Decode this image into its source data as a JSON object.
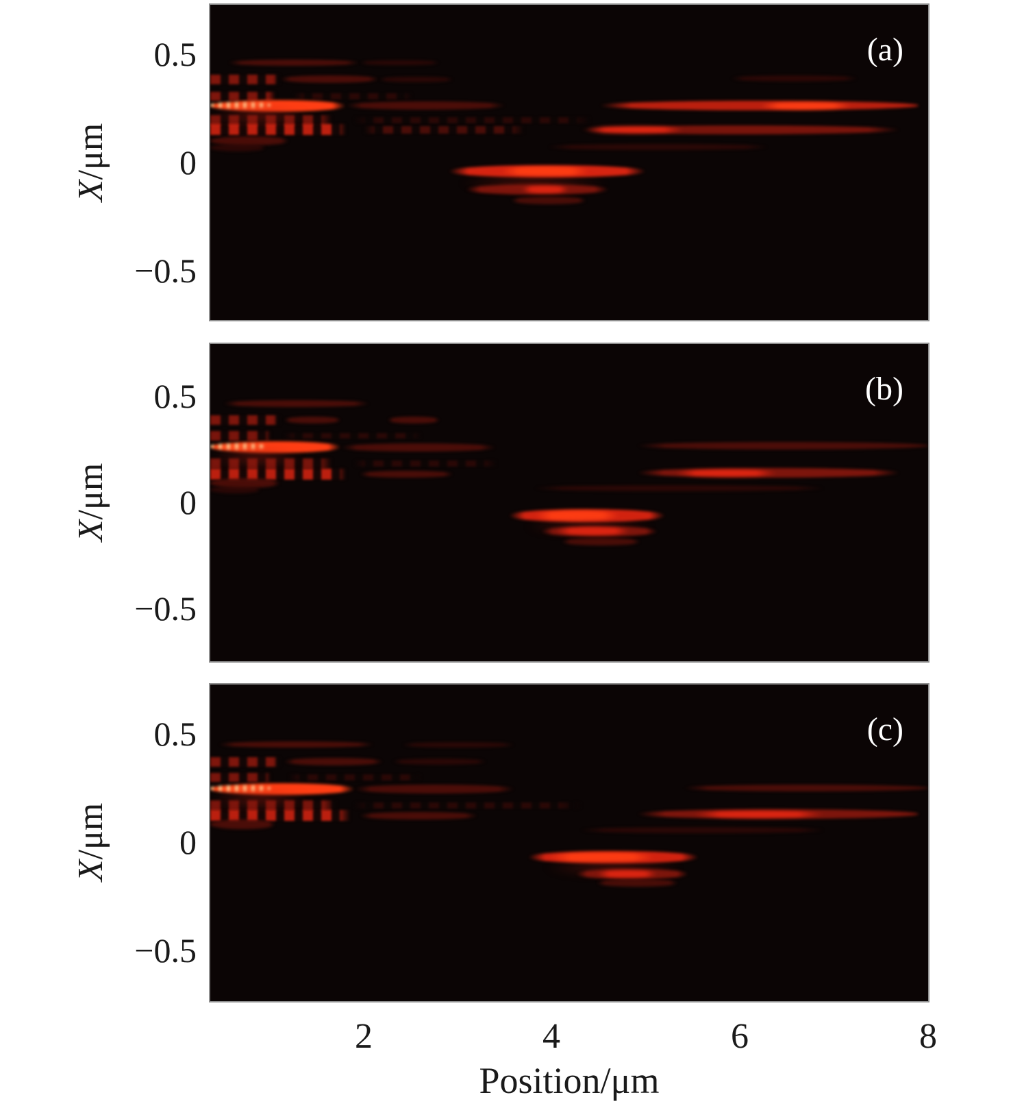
{
  "figure": {
    "type": "three-panel intensity heatmap figure",
    "background": "#ffffff",
    "panel_background": "#0b0505",
    "panel_border_color": "#8f8f8f",
    "colormap": "hot (black - dark red - red - orange/white)",
    "accent_colors": {
      "faint_red": "#3e0a07",
      "dim_red": "#69120a",
      "mid_red": "#9e1a0e",
      "bright_red": "#e22612",
      "peak_red": "#ff3e14",
      "hot_core_orange": "#ffd296"
    }
  },
  "chart_data": {
    "type": "heatmap",
    "x_axis": {
      "label": "Position/μm",
      "tick_labels": [
        "2",
        "4",
        "6",
        "8"
      ],
      "ticks": [
        2,
        4,
        6,
        8
      ],
      "range": [
        0.36,
        8
      ]
    },
    "y_axis": {
      "label": "X/μm",
      "label_var": "X",
      "label_unit": "/μm",
      "tick_labels": [
        "0.5",
        "0",
        "−0.5"
      ],
      "ticks": [
        0.5,
        0,
        -0.5
      ],
      "range": [
        -0.75,
        0.75
      ]
    },
    "streak_format": [
      "kind(line|dash|hot|glow)",
      "x0_um",
      "x1_um",
      "X_center_um",
      "thickness_um",
      "peak_intensity_0to1",
      "core_x0_um",
      "core_x1_um"
    ],
    "panels": [
      {
        "label": "(a)",
        "streaks": [
          [
            "line",
            0.55,
            1.95,
            0.475,
            0.03,
            0.3
          ],
          [
            "line",
            1.95,
            2.8,
            0.475,
            0.025,
            0.15
          ],
          [
            "dash",
            0.36,
            1.1,
            0.395,
            0.045,
            0.55
          ],
          [
            "line",
            1.1,
            2.15,
            0.395,
            0.036,
            0.3
          ],
          [
            "line",
            2.15,
            2.95,
            0.395,
            0.028,
            0.16
          ],
          [
            "dash",
            0.36,
            1.05,
            0.315,
            0.045,
            0.5
          ],
          [
            "dash",
            1.25,
            2.5,
            0.315,
            0.03,
            0.16
          ],
          [
            "hot",
            0.36,
            1.8,
            0.27,
            0.055,
            1.0,
            0.36,
            1.0
          ],
          [
            "line",
            1.8,
            3.5,
            0.27,
            0.04,
            0.3
          ],
          [
            "line",
            4.5,
            7.9,
            0.27,
            0.045,
            0.6,
            6.2,
            7.2
          ],
          [
            "glow",
            0.36,
            1.4,
            0.225,
            0.11,
            0.33
          ],
          [
            "dash",
            0.36,
            1.65,
            0.2,
            0.048,
            0.45
          ],
          [
            "dash",
            1.9,
            4.4,
            0.2,
            0.028,
            0.13
          ],
          [
            "dash",
            0.36,
            1.8,
            0.155,
            0.052,
            0.62
          ],
          [
            "dash",
            2.0,
            3.7,
            0.155,
            0.034,
            0.28
          ],
          [
            "line",
            4.3,
            7.7,
            0.155,
            0.042,
            0.45,
            4.35,
            5.4
          ],
          [
            "line",
            0.36,
            1.2,
            0.103,
            0.045,
            0.28
          ],
          [
            "line",
            0.36,
            0.95,
            0.071,
            0.035,
            0.18
          ],
          [
            "line",
            3.95,
            6.3,
            0.074,
            0.028,
            0.16
          ],
          [
            "line",
            5.9,
            7.25,
            0.4,
            0.028,
            0.18
          ],
          [
            "line",
            2.9,
            5.0,
            -0.042,
            0.06,
            0.88,
            3.45,
            4.4
          ],
          [
            "glow",
            3.0,
            4.6,
            -0.1,
            0.08,
            0.22
          ],
          [
            "line",
            3.08,
            4.6,
            -0.129,
            0.048,
            0.48,
            3.67,
            4.18
          ],
          [
            "line",
            3.56,
            4.36,
            -0.181,
            0.034,
            0.26
          ]
        ]
      },
      {
        "label": "(b)",
        "streaks": [
          [
            "line",
            0.5,
            2.05,
            0.468,
            0.03,
            0.28
          ],
          [
            "dash",
            0.36,
            1.1,
            0.39,
            0.045,
            0.5
          ],
          [
            "line",
            1.15,
            1.75,
            0.39,
            0.034,
            0.28
          ],
          [
            "line",
            2.25,
            2.8,
            0.39,
            0.03,
            0.28
          ],
          [
            "dash",
            0.36,
            1.0,
            0.316,
            0.045,
            0.45
          ],
          [
            "dash",
            1.15,
            2.6,
            0.316,
            0.028,
            0.15
          ],
          [
            "hot",
            0.36,
            1.75,
            0.261,
            0.055,
            1.0,
            0.36,
            0.95
          ],
          [
            "line",
            1.75,
            3.4,
            0.261,
            0.04,
            0.3
          ],
          [
            "line",
            4.9,
            8.0,
            0.268,
            0.035,
            0.3
          ],
          [
            "glow",
            0.36,
            1.35,
            0.22,
            0.11,
            0.33
          ],
          [
            "dash",
            0.36,
            1.65,
            0.184,
            0.048,
            0.45
          ],
          [
            "dash",
            1.9,
            3.4,
            0.184,
            0.028,
            0.13
          ],
          [
            "dash",
            0.36,
            1.8,
            0.135,
            0.052,
            0.6
          ],
          [
            "line",
            1.95,
            2.95,
            0.135,
            0.034,
            0.28
          ],
          [
            "line",
            4.9,
            7.7,
            0.14,
            0.045,
            0.5,
            5.3,
            6.4
          ],
          [
            "line",
            0.36,
            1.1,
            0.093,
            0.045,
            0.28
          ],
          [
            "line",
            0.36,
            0.9,
            0.061,
            0.035,
            0.16
          ],
          [
            "line",
            3.8,
            6.9,
            0.068,
            0.028,
            0.15
          ],
          [
            "line",
            3.54,
            5.2,
            -0.061,
            0.06,
            0.85,
            3.81,
            4.72
          ],
          [
            "glow",
            3.7,
            5.1,
            -0.115,
            0.08,
            0.22
          ],
          [
            "line",
            3.88,
            5.12,
            -0.135,
            0.048,
            0.48,
            4.03,
            4.83
          ],
          [
            "line",
            4.1,
            4.94,
            -0.184,
            0.034,
            0.25
          ]
        ]
      },
      {
        "label": "(c)",
        "streaks": [
          [
            "line",
            0.45,
            2.1,
            0.465,
            0.03,
            0.28
          ],
          [
            "line",
            2.4,
            3.6,
            0.465,
            0.025,
            0.13
          ],
          [
            "dash",
            0.36,
            1.1,
            0.384,
            0.045,
            0.5
          ],
          [
            "line",
            1.15,
            2.2,
            0.384,
            0.034,
            0.28
          ],
          [
            "line",
            2.3,
            3.3,
            0.384,
            0.028,
            0.15
          ],
          [
            "dash",
            0.36,
            1.0,
            0.31,
            0.045,
            0.45
          ],
          [
            "dash",
            1.2,
            2.6,
            0.31,
            0.028,
            0.14
          ],
          [
            "hot",
            0.36,
            1.9,
            0.255,
            0.055,
            1.0,
            0.36,
            1.0
          ],
          [
            "line",
            1.9,
            3.6,
            0.255,
            0.04,
            0.32
          ],
          [
            "line",
            5.4,
            8.0,
            0.261,
            0.032,
            0.28
          ],
          [
            "glow",
            0.36,
            1.4,
            0.212,
            0.11,
            0.33
          ],
          [
            "dash",
            0.36,
            1.7,
            0.177,
            0.048,
            0.45
          ],
          [
            "dash",
            1.9,
            4.3,
            0.177,
            0.028,
            0.13
          ],
          [
            "dash",
            0.36,
            1.85,
            0.129,
            0.052,
            0.6
          ],
          [
            "line",
            1.95,
            3.2,
            0.129,
            0.034,
            0.28
          ],
          [
            "line",
            4.9,
            7.9,
            0.135,
            0.045,
            0.5,
            5.5,
            6.9
          ],
          [
            "line",
            0.36,
            1.05,
            0.087,
            0.045,
            0.28
          ],
          [
            "line",
            4.3,
            6.9,
            0.061,
            0.028,
            0.15
          ],
          [
            "line",
            3.74,
            5.56,
            -0.068,
            0.06,
            0.85,
            3.96,
            5.09
          ],
          [
            "glow",
            3.9,
            5.4,
            -0.12,
            0.08,
            0.22
          ],
          [
            "line",
            4.25,
            5.45,
            -0.148,
            0.048,
            0.48,
            4.47,
            5.12
          ],
          [
            "line",
            4.47,
            5.34,
            -0.19,
            0.034,
            0.25
          ]
        ]
      }
    ]
  },
  "layout_note": "panels stacked vertically sharing x axis; y tick labels 0.5, 0, -0.5 beside each panel"
}
